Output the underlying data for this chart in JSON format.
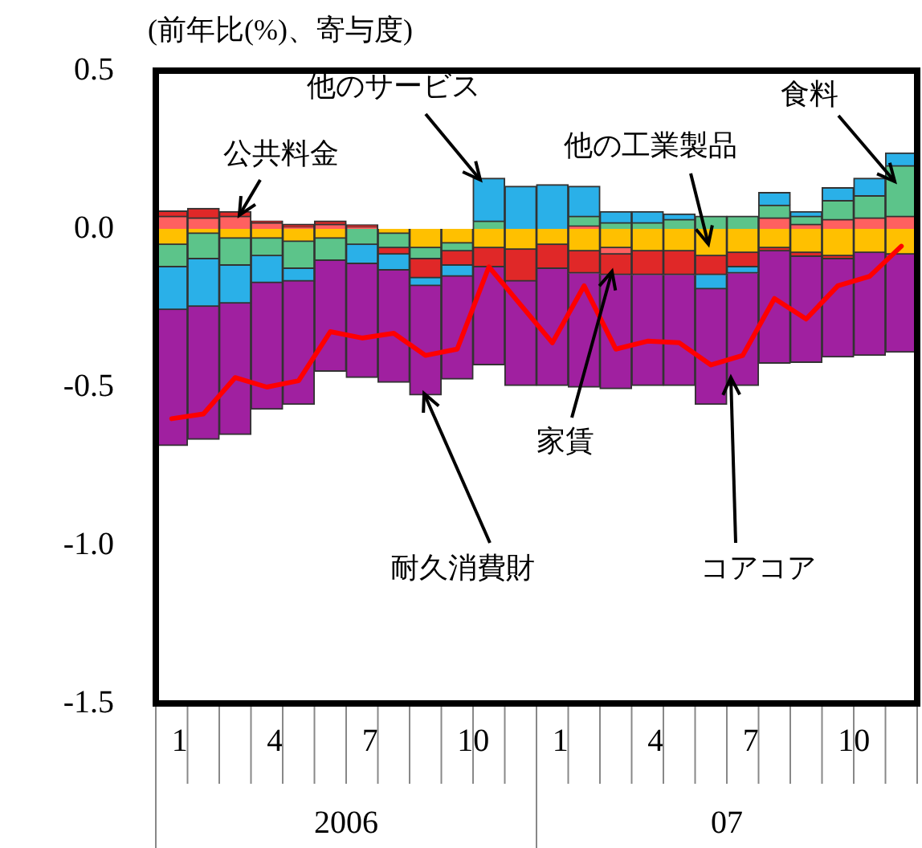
{
  "chart_data": {
    "type": "bar",
    "stacked": true,
    "ylabel": "(前年比(%)、寄与度)",
    "categories": [
      "1",
      null,
      null,
      "4",
      null,
      null,
      "7",
      null,
      null,
      "10",
      null,
      null,
      "1",
      null,
      null,
      "4",
      null,
      null,
      "7",
      null,
      null,
      "10",
      null,
      null
    ],
    "annotations": [
      "2006",
      "07"
    ],
    "series": [
      {
        "name": "他の工業製品",
        "color": "#ffc000",
        "values": [
          -0.05,
          -0.015,
          -0.03,
          -0.03,
          -0.04,
          -0.03,
          0,
          -0.015,
          -0.06,
          -0.045,
          -0.06,
          -0.065,
          -0.05,
          -0.07,
          -0.06,
          -0.07,
          -0.07,
          -0.085,
          -0.075,
          -0.06,
          -0.075,
          -0.085,
          -0.075,
          -0.08
        ]
      },
      {
        "name": "公共料金",
        "color": "#ff6060",
        "values": [
          0.04,
          0.035,
          0.04,
          0.02,
          0.005,
          0.015,
          0.005,
          0,
          0,
          0,
          0,
          0,
          0,
          0.01,
          -0.02,
          0,
          0,
          0,
          0,
          0.035,
          0.015,
          0.03,
          0.035,
          0.04
        ]
      },
      {
        "name": "食料",
        "color": "#5cc48a",
        "values": [
          -0.07,
          -0.08,
          -0.085,
          -0.055,
          -0.085,
          -0.07,
          -0.05,
          -0.045,
          -0.035,
          -0.025,
          0.025,
          0,
          0,
          0.03,
          0.02,
          0.02,
          0.03,
          0.04,
          0.04,
          0.04,
          0.025,
          0.06,
          0.07,
          0.16
        ]
      },
      {
        "name": "家賃",
        "color": "#e02828",
        "values": [
          0.017,
          0.03,
          0.015,
          0.005,
          0.01,
          0.01,
          0.008,
          -0.02,
          -0.06,
          -0.045,
          -0.06,
          -0.1,
          -0.075,
          -0.07,
          -0.065,
          -0.075,
          -0.075,
          -0.06,
          -0.045,
          -0.01,
          -0.012,
          -0.01,
          0,
          0
        ]
      },
      {
        "name": "他のサービス",
        "color": "#2ab0e8",
        "values": [
          -0.135,
          -0.15,
          -0.12,
          -0.085,
          -0.04,
          0,
          -0.06,
          -0.05,
          -0.025,
          -0.035,
          0.135,
          0.135,
          0.14,
          0.095,
          0.035,
          0.035,
          0.017,
          -0.045,
          -0.02,
          0.04,
          0.015,
          0.04,
          0.055,
          0.04
        ]
      },
      {
        "name": "耐久消費財",
        "color": "#a020a0",
        "values": [
          -0.43,
          -0.42,
          -0.415,
          -0.4,
          -0.39,
          -0.35,
          -0.36,
          -0.355,
          -0.345,
          -0.325,
          -0.31,
          -0.33,
          -0.37,
          -0.36,
          -0.36,
          -0.35,
          -0.35,
          -0.365,
          -0.355,
          -0.355,
          -0.335,
          -0.31,
          -0.325,
          -0.31
        ]
      },
      {
        "name": "コアコア",
        "type": "line",
        "color": "#ff0000",
        "values": [
          -0.6,
          -0.585,
          -0.47,
          -0.5,
          -0.48,
          -0.325,
          -0.345,
          -0.33,
          -0.4,
          -0.38,
          -0.12,
          -0.24,
          -0.36,
          -0.18,
          -0.38,
          -0.355,
          -0.36,
          -0.43,
          -0.4,
          -0.22,
          -0.285,
          -0.18,
          -0.15,
          -0.055
        ]
      }
    ],
    "ylim": [
      -1.5,
      0.5
    ],
    "yticks": [
      {
        "value": 0.5,
        "label": "0.5"
      },
      {
        "value": 0,
        "label": "0.0"
      },
      {
        "value": -0.5,
        "label": "-0.5"
      },
      {
        "value": -1,
        "label": "-1.0"
      },
      {
        "value": -1.5,
        "label": "-1.5"
      }
    ],
    "grid": false,
    "legend": false,
    "marker": "none"
  }
}
